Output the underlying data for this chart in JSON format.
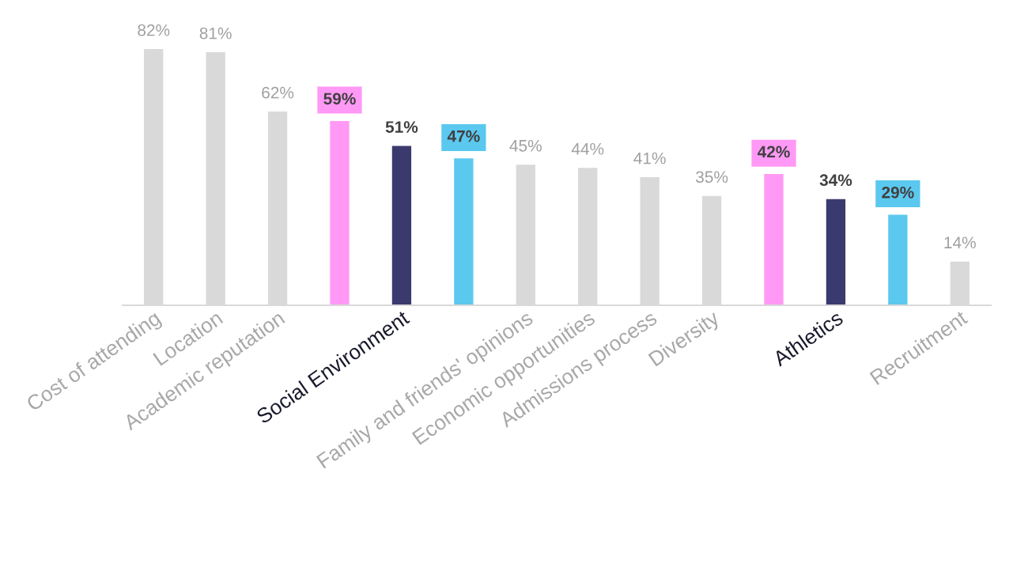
{
  "chart_data": {
    "type": "bar",
    "categories": [
      "Cost of attending",
      "Location",
      "Academic reputation",
      null,
      "Social Environment",
      null,
      "Family and friends' opinions",
      "Economic opportunities",
      "Admissions process",
      "Diversity",
      null,
      "Athletics",
      null,
      "Recruitment"
    ],
    "values": [
      82,
      81,
      62,
      59,
      51,
      47,
      45,
      44,
      41,
      35,
      42,
      34,
      29,
      14
    ],
    "colors": [
      "#d9d9d9",
      "#d9d9d9",
      "#d9d9d9",
      "#ff99f5",
      "#3b3a6f",
      "#5bc8ef",
      "#d9d9d9",
      "#d9d9d9",
      "#d9d9d9",
      "#d9d9d9",
      "#ff99f5",
      "#3b3a6f",
      "#5bc8ef",
      "#d9d9d9"
    ],
    "value_labels": [
      "82%",
      "81%",
      "62%",
      "59%",
      "51%",
      "47%",
      "45%",
      "44%",
      "41%",
      "35%",
      "42%",
      "34%",
      "29%",
      "14%"
    ],
    "grid": false,
    "legend": false
  }
}
